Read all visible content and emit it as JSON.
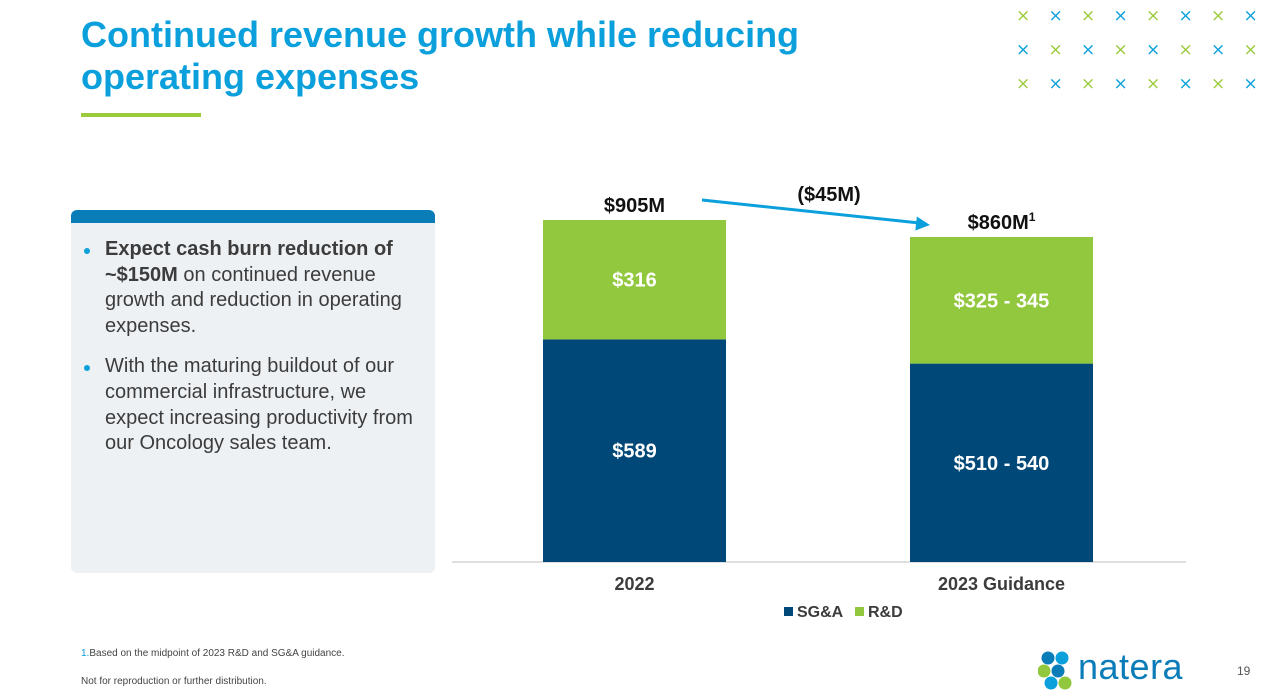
{
  "slide": {
    "title": "Continued revenue growth while reducing operating expenses",
    "page_number": "19",
    "footnote_number": "1.",
    "footnote_text": "Based on the midpoint of 2023 R&D and SG&A guidance.",
    "disclaimer": "Not for reproduction or further distribution.",
    "logo_text": "natera",
    "colors": {
      "title": "#0ba0dc",
      "accent_green": "#9bcb3b",
      "accent_blue": "#0a7cb8",
      "sga": "#004878",
      "rd": "#92c83e"
    }
  },
  "bullets": [
    {
      "bold": "Expect cash burn reduction of ~$150M",
      "text": " on continued revenue growth and reduction in operating expenses."
    },
    {
      "bold": "",
      "text": "With the maturing buildout of our commercial infrastructure, we expect increasing productivity from our Oncology sales team."
    }
  ],
  "chart_data": {
    "type": "bar",
    "stacked": true,
    "title": "",
    "xlabel": "",
    "ylabel": "",
    "categories": [
      "2022",
      "2023 Guidance"
    ],
    "series": [
      {
        "name": "SG&A",
        "values": [
          589,
          525
        ],
        "labels": [
          "$589",
          "$510 - 540"
        ],
        "color": "#004878"
      },
      {
        "name": "R&D",
        "values": [
          316,
          335
        ],
        "labels": [
          "$316",
          "$325 - 345"
        ],
        "color": "#92c83e"
      }
    ],
    "totals": [
      {
        "text": "$905M",
        "superscript": ""
      },
      {
        "text": "$860M",
        "superscript": "1"
      }
    ],
    "change_annotation": "($45M)",
    "ylim": [
      0,
      905
    ],
    "grid": false,
    "legend": "bottom"
  }
}
